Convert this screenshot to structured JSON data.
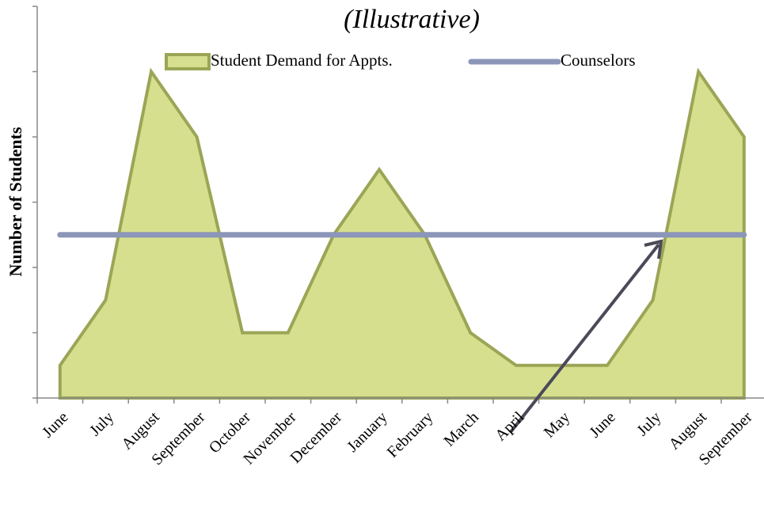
{
  "chart_data": {
    "type": "area",
    "title": "(Illustrative)",
    "y_axis_label": "Number of Students",
    "categories": [
      "June",
      "July",
      "August",
      "September",
      "October",
      "November",
      "December",
      "January",
      "February",
      "March",
      "April",
      "May",
      "June",
      "July",
      "August",
      "September"
    ],
    "series": [
      {
        "name": "Student Demand for Appts.",
        "type": "area",
        "color": "#d6df8e",
        "edge_color": "#9ba556",
        "values": [
          0.5,
          1.5,
          5,
          4,
          1,
          1,
          2.5,
          3.5,
          2.5,
          1,
          0.5,
          0.5,
          0.5,
          1.5,
          5,
          4
        ]
      },
      {
        "name": "Counselors",
        "type": "line",
        "color": "#8b96b8",
        "values": [
          2.5,
          2.5,
          2.5,
          2.5,
          2.5,
          2.5,
          2.5,
          2.5,
          2.5,
          2.5,
          2.5,
          2.5,
          2.5,
          2.5,
          2.5,
          2.5
        ]
      }
    ],
    "ylim": [
      0,
      6
    ],
    "yticks": [
      0,
      1,
      2,
      3,
      4,
      5,
      6
    ],
    "legend": "top"
  }
}
